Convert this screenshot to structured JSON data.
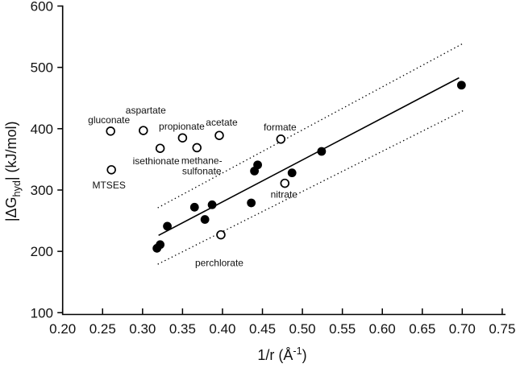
{
  "chart_data": {
    "type": "scatter",
    "title": "",
    "xlabel": "1/r (Å^-1)",
    "xlabel_parts": {
      "pre": "1/r (Å",
      "sup": "-1",
      "post": ")"
    },
    "ylabel": "|ΔG_hyd| (kJ/mol)",
    "ylabel_parts": {
      "pre": "|ΔG",
      "sub": "hyd",
      "post": "|  (kJ/mol)"
    },
    "xlim": [
      0.2,
      0.75
    ],
    "ylim": [
      100,
      600
    ],
    "grid": false,
    "legend": "none",
    "x_ticks": [
      0.2,
      0.25,
      0.3,
      0.35,
      0.4,
      0.45,
      0.5,
      0.55,
      0.6,
      0.65,
      0.7,
      0.75
    ],
    "x_tick_labels": [
      "0.20",
      "0.25",
      "0.30",
      "0.35",
      "0.40",
      "0.45",
      "0.50",
      "0.55",
      "0.60",
      "0.65",
      "0.70",
      "0.75"
    ],
    "y_ticks": [
      100,
      200,
      300,
      400,
      500,
      600
    ],
    "y_tick_labels": [
      "100",
      "200",
      "300",
      "400",
      "500",
      "600"
    ],
    "series": [
      {
        "name": "labeled anions (open circles)",
        "marker": "open-circle",
        "points": [
          {
            "x": 0.26,
            "y": 396,
            "label": "gluconate",
            "label_lines": [
              "gluconate"
            ],
            "dx": -2,
            "dy": -10
          },
          {
            "x": 0.301,
            "y": 397,
            "label": "aspartate",
            "label_lines": [
              "aspartate"
            ],
            "dx": 3,
            "dy": -21
          },
          {
            "x": 0.35,
            "y": 385,
            "label": "propionate",
            "label_lines": [
              "propionate"
            ],
            "dx": -1,
            "dy": -10
          },
          {
            "x": 0.396,
            "y": 389,
            "label": "acetate",
            "label_lines": [
              "acetate"
            ],
            "dx": 3,
            "dy": -12
          },
          {
            "x": 0.322,
            "y": 368,
            "label": "isethionate",
            "label_lines": [
              "isethionate"
            ],
            "dx": -5,
            "dy": 20
          },
          {
            "x": 0.368,
            "y": 369,
            "label": "methane-sulfonate",
            "label_lines": [
              "methane-",
              "sulfonate"
            ],
            "dx": 6,
            "dy": 20
          },
          {
            "x": 0.261,
            "y": 333,
            "label": "MTSES",
            "label_lines": [
              "MTSES"
            ],
            "dx": -3,
            "dy": 23
          },
          {
            "x": 0.473,
            "y": 383,
            "label": "formate",
            "label_lines": [
              "formate"
            ],
            "dx": -1,
            "dy": -11
          },
          {
            "x": 0.478,
            "y": 311,
            "label": "nitrate",
            "label_lines": [
              "nitrate"
            ],
            "dx": -1,
            "dy": 18
          },
          {
            "x": 0.398,
            "y": 227,
            "label": "perchlorate",
            "label_lines": [
              "perchlorate"
            ],
            "dx": -2,
            "dy": 39
          }
        ]
      },
      {
        "name": "unlabeled anions (filled circles)",
        "marker": "filled-circle",
        "points": [
          {
            "x": 0.318,
            "y": 205
          },
          {
            "x": 0.322,
            "y": 211
          },
          {
            "x": 0.331,
            "y": 241
          },
          {
            "x": 0.365,
            "y": 272
          },
          {
            "x": 0.378,
            "y": 252
          },
          {
            "x": 0.387,
            "y": 276
          },
          {
            "x": 0.436,
            "y": 279
          },
          {
            "x": 0.44,
            "y": 331
          },
          {
            "x": 0.444,
            "y": 341
          },
          {
            "x": 0.487,
            "y": 328
          },
          {
            "x": 0.524,
            "y": 363
          },
          {
            "x": 0.699,
            "y": 471
          }
        ]
      }
    ],
    "fit_line": {
      "x1": 0.32,
      "y1": 226,
      "x2": 0.696,
      "y2": 483,
      "style": "solid"
    },
    "confidence_bands": [
      {
        "position": "upper",
        "style": "dotted",
        "x1": 0.319,
        "y1": 271,
        "x2": 0.701,
        "y2": 539
      },
      {
        "position": "lower",
        "style": "dotted",
        "x1": 0.319,
        "y1": 179,
        "x2": 0.702,
        "y2": 430
      }
    ],
    "colors": {
      "marker": "#000000",
      "line": "#000000",
      "text": "#111111",
      "background": "#ffffff"
    }
  }
}
